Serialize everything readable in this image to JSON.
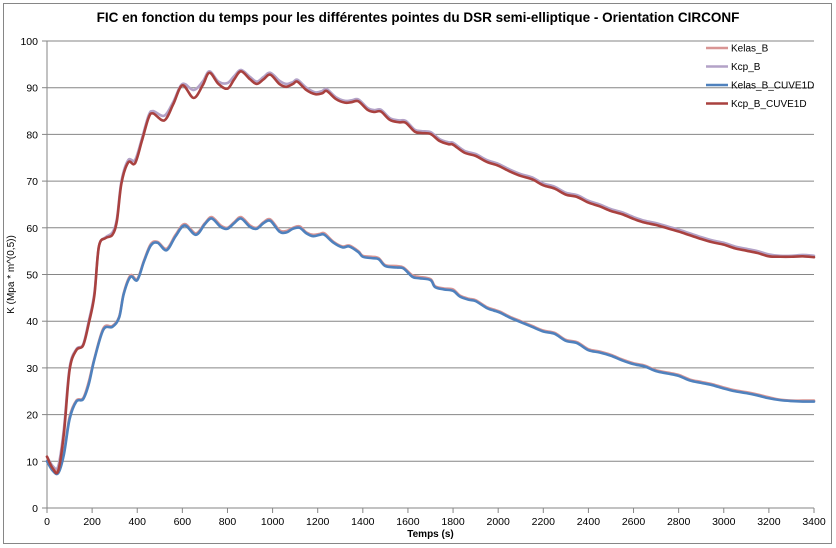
{
  "chart_data": {
    "type": "line",
    "title": "FIC en fonction du temps pour les différentes pointes du DSR semi-elliptique - Orientation CIRCONF",
    "xlabel": "Temps (s)",
    "ylabel": "K (Mpa * m^(0,5))",
    "xlim": [
      0,
      3400
    ],
    "ylim": [
      0,
      100
    ],
    "x_ticks": [
      "0",
      "200",
      "400",
      "600",
      "800",
      "1000",
      "1200",
      "1400",
      "1600",
      "1800",
      "2000",
      "2200",
      "2400",
      "2600",
      "2800",
      "3000",
      "3200",
      "3400"
    ],
    "y_ticks": [
      "0",
      "10",
      "20",
      "30",
      "40",
      "50",
      "60",
      "70",
      "80",
      "90",
      "100"
    ],
    "grid": "horizontal",
    "legend_position": "top-right",
    "series": [
      {
        "name": "Kelas_B",
        "color": "#d99594",
        "x": [
          0,
          25,
          50,
          75,
          100,
          130,
          160,
          185,
          210,
          250,
          290,
          320,
          340,
          370,
          400,
          430,
          460,
          490,
          530,
          570,
          610,
          660,
          700,
          730,
          770,
          800,
          830,
          860,
          900,
          930,
          960,
          990,
          1030,
          1060,
          1090,
          1120,
          1150,
          1180,
          1210,
          1230,
          1270,
          1310,
          1340,
          1380,
          1400,
          1440,
          1470,
          1500,
          1550,
          1580,
          1620,
          1650,
          1700,
          1720,
          1760,
          1800,
          1830,
          1870,
          1900,
          1950,
          1980,
          2010,
          2050,
          2100,
          2150,
          2200,
          2250,
          2300,
          2350,
          2400,
          2450,
          2500,
          2550,
          2600,
          2650,
          2700,
          2750,
          2800,
          2850,
          2900,
          2950,
          3000,
          3050,
          3100,
          3150,
          3200,
          3250,
          3300,
          3350,
          3400
        ],
        "values": [
          10,
          8.5,
          8,
          12,
          19.5,
          23,
          23.5,
          27,
          32,
          38.5,
          39,
          41,
          46,
          49.8,
          49,
          53,
          56.5,
          57,
          55.5,
          58.5,
          60.8,
          58.8,
          61,
          62.3,
          60.5,
          60,
          61.2,
          62.3,
          60.5,
          60,
          61.2,
          61.8,
          59.5,
          59.3,
          60,
          60.3,
          59,
          58.5,
          58.7,
          58.8,
          57,
          56,
          56.2,
          55,
          54,
          53.8,
          53.5,
          52,
          51.8,
          51.5,
          49.8,
          49.5,
          49,
          47.5,
          47,
          46.8,
          45.5,
          44.8,
          44.5,
          43,
          42.5,
          42,
          41,
          40,
          39,
          38,
          37.5,
          36,
          35.5,
          34,
          33.5,
          32.8,
          31.8,
          31,
          30.5,
          29.5,
          29,
          28.5,
          27.5,
          27,
          26.5,
          25.8,
          25.2,
          24.8,
          24.3,
          23.7,
          23.2,
          23,
          23,
          23
        ]
      },
      {
        "name": "Kcp_B",
        "color": "#b3a2c7",
        "x": [
          0,
          25,
          50,
          75,
          100,
          130,
          160,
          185,
          210,
          230,
          260,
          290,
          310,
          330,
          360,
          390,
          420,
          450,
          470,
          520,
          560,
          600,
          650,
          690,
          720,
          760,
          800,
          830,
          860,
          900,
          930,
          960,
          990,
          1030,
          1060,
          1090,
          1110,
          1150,
          1190,
          1220,
          1240,
          1280,
          1320,
          1350,
          1380,
          1420,
          1450,
          1480,
          1520,
          1560,
          1590,
          1630,
          1660,
          1700,
          1740,
          1780,
          1800,
          1850,
          1900,
          1950,
          2000,
          2050,
          2100,
          2150,
          2200,
          2250,
          2300,
          2350,
          2400,
          2450,
          2500,
          2550,
          2600,
          2650,
          2700,
          2750,
          2800,
          2850,
          2900,
          2950,
          3000,
          3050,
          3100,
          3150,
          3200,
          3250,
          3300,
          3350,
          3400
        ],
        "values": [
          11,
          9,
          9,
          17,
          30,
          34,
          35,
          40,
          46,
          56,
          58,
          59,
          62,
          70,
          74.5,
          74.5,
          79,
          84,
          85,
          84,
          87,
          90.8,
          89.5,
          91.3,
          93.5,
          91.3,
          91,
          92.5,
          93.8,
          92.3,
          91.3,
          92.3,
          93.2,
          91.5,
          90.8,
          91.2,
          91.7,
          90,
          89,
          89.3,
          89.7,
          88,
          87.2,
          87.3,
          87.5,
          85.7,
          85.2,
          85.3,
          83.5,
          83,
          82.9,
          81,
          80.7,
          80.5,
          79,
          78.3,
          78.2,
          76.5,
          75.8,
          74.5,
          73.7,
          72.5,
          71.5,
          70.8,
          69.5,
          68.8,
          67.5,
          67,
          65.8,
          65,
          64,
          63.3,
          62.3,
          61.5,
          61,
          60.3,
          59.6,
          58.8,
          58,
          57.3,
          56.8,
          56,
          55.5,
          55,
          54.3,
          54,
          54,
          54.2,
          54
        ]
      },
      {
        "name": "Kelas_B_CUVE1D",
        "color": "#4f81bd",
        "x": [
          0,
          25,
          50,
          75,
          100,
          130,
          160,
          185,
          210,
          250,
          290,
          320,
          340,
          370,
          400,
          430,
          460,
          490,
          530,
          570,
          610,
          660,
          700,
          730,
          770,
          800,
          830,
          860,
          900,
          930,
          960,
          990,
          1030,
          1060,
          1090,
          1120,
          1150,
          1180,
          1210,
          1230,
          1270,
          1310,
          1340,
          1380,
          1400,
          1440,
          1470,
          1500,
          1550,
          1580,
          1620,
          1650,
          1700,
          1720,
          1760,
          1800,
          1830,
          1870,
          1900,
          1950,
          1980,
          2010,
          2050,
          2100,
          2150,
          2200,
          2250,
          2300,
          2350,
          2400,
          2450,
          2500,
          2550,
          2600,
          2650,
          2700,
          2750,
          2800,
          2850,
          2900,
          2950,
          3000,
          3050,
          3100,
          3150,
          3200,
          3250,
          3300,
          3350,
          3400
        ],
        "values": [
          10,
          8,
          7.5,
          11.5,
          19,
          22.8,
          23.3,
          26.5,
          31.8,
          38.2,
          38.8,
          40.8,
          45.8,
          49.5,
          48.8,
          52.8,
          56.2,
          56.8,
          55.2,
          58.2,
          60.5,
          58.5,
          60.8,
          62,
          60.2,
          59.8,
          61,
          62,
          60.2,
          59.8,
          61,
          61.5,
          59.2,
          59,
          59.8,
          60,
          58.8,
          58.2,
          58.5,
          58.5,
          56.8,
          55.8,
          56,
          54.8,
          53.8,
          53.5,
          53.3,
          51.8,
          51.5,
          51.3,
          49.5,
          49.2,
          48.8,
          47.3,
          46.8,
          46.5,
          45.3,
          44.6,
          44.3,
          42.8,
          42.3,
          41.8,
          40.8,
          39.8,
          38.8,
          37.8,
          37.3,
          35.8,
          35.3,
          33.8,
          33.3,
          32.6,
          31.6,
          30.8,
          30.3,
          29.3,
          28.8,
          28.3,
          27.3,
          26.8,
          26.3,
          25.6,
          25,
          24.6,
          24.1,
          23.5,
          23.1,
          22.9,
          22.8,
          22.8
        ]
      },
      {
        "name": "Kcp_B_CUVE1D",
        "color": "#a9413f",
        "x": [
          0,
          25,
          50,
          75,
          100,
          130,
          160,
          185,
          210,
          230,
          260,
          290,
          310,
          330,
          360,
          390,
          420,
          450,
          470,
          520,
          560,
          600,
          650,
          690,
          720,
          760,
          800,
          830,
          860,
          900,
          930,
          960,
          990,
          1030,
          1060,
          1090,
          1110,
          1150,
          1190,
          1220,
          1240,
          1280,
          1320,
          1350,
          1380,
          1420,
          1450,
          1480,
          1520,
          1560,
          1590,
          1630,
          1660,
          1700,
          1740,
          1780,
          1800,
          1850,
          1900,
          1950,
          2000,
          2050,
          2100,
          2150,
          2200,
          2250,
          2300,
          2350,
          2400,
          2450,
          2500,
          2550,
          2600,
          2650,
          2700,
          2750,
          2800,
          2850,
          2900,
          2950,
          3000,
          3050,
          3100,
          3150,
          3200,
          3250,
          3300,
          3350,
          3400
        ],
        "values": [
          11,
          8.5,
          8,
          16,
          29.5,
          33.8,
          34.8,
          39.5,
          45.5,
          56,
          57.8,
          58.5,
          61.5,
          69.5,
          74,
          73.8,
          78.5,
          83.5,
          84.5,
          83,
          86.5,
          90.5,
          87.8,
          90.5,
          93.2,
          90.8,
          89.8,
          91.8,
          93.5,
          91.8,
          90.8,
          91.8,
          92.8,
          90.8,
          90.2,
          90.8,
          91.3,
          89.5,
          88.6,
          88.8,
          89.3,
          87.6,
          86.8,
          86.9,
          87.1,
          85.3,
          84.8,
          84.9,
          83.1,
          82.6,
          82.5,
          80.6,
          80.3,
          80.1,
          78.6,
          77.9,
          77.8,
          76.1,
          75.4,
          74.1,
          73.3,
          72.1,
          71.1,
          70.4,
          69.1,
          68.4,
          67.1,
          66.6,
          65.4,
          64.6,
          63.6,
          62.9,
          61.9,
          61.1,
          60.6,
          59.9,
          59.2,
          58.4,
          57.6,
          56.9,
          56.4,
          55.6,
          55.1,
          54.6,
          53.9,
          53.8,
          53.8,
          53.9,
          53.7
        ]
      }
    ]
  }
}
